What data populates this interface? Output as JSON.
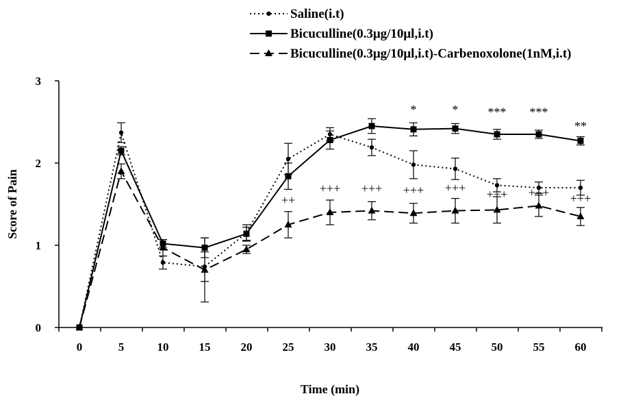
{
  "chart_data": {
    "type": "line",
    "title": "",
    "xlabel": "Time (min)",
    "ylabel": "Score of Pain",
    "x": [
      0,
      5,
      10,
      15,
      20,
      25,
      30,
      35,
      40,
      45,
      50,
      55,
      60
    ],
    "xlim": [
      0,
      60
    ],
    "ylim": [
      0,
      3
    ],
    "y_ticks": [
      0,
      1,
      2,
      3
    ],
    "grid": false,
    "legend_position": "top-center",
    "series": [
      {
        "name": "Saline(i.t)",
        "style": "dotted",
        "marker": "circle",
        "color": "#000000",
        "values": [
          0,
          2.37,
          0.79,
          0.74,
          1.15,
          2.05,
          2.35,
          2.19,
          1.98,
          1.93,
          1.73,
          1.7,
          1.7
        ],
        "errors": [
          0,
          0.12,
          0.08,
          0.18,
          0.1,
          0.19,
          0.08,
          0.1,
          0.17,
          0.13,
          0.08,
          0.07,
          0.09
        ]
      },
      {
        "name": "Bicuculline(0.3μg/10μl,i.t)",
        "style": "solid",
        "marker": "square",
        "color": "#000000",
        "values": [
          0,
          2.15,
          1.02,
          0.97,
          1.14,
          1.84,
          2.28,
          2.45,
          2.41,
          2.42,
          2.35,
          2.35,
          2.27
        ],
        "errors": [
          0,
          0.05,
          0.05,
          0.12,
          0.08,
          0.16,
          0.11,
          0.09,
          0.08,
          0.06,
          0.06,
          0.05,
          0.05
        ]
      },
      {
        "name": "Bicuculline(0.3μg/10μl,i.t)-Carbenoxolone(1nM,i.t)",
        "style": "dashed",
        "marker": "triangle",
        "color": "#000000",
        "values": [
          0,
          1.9,
          0.97,
          0.7,
          0.95,
          1.25,
          1.4,
          1.42,
          1.39,
          1.42,
          1.43,
          1.48,
          1.35
        ],
        "errors": [
          0,
          0.09,
          0.1,
          0.39,
          0.05,
          0.16,
          0.15,
          0.11,
          0.12,
          0.15,
          0.16,
          0.13,
          0.11
        ]
      }
    ],
    "annotations": [
      {
        "x": 40,
        "text": "*",
        "y": 2.6
      },
      {
        "x": 45,
        "text": "*",
        "y": 2.6
      },
      {
        "x": 50,
        "text": "***",
        "y": 2.57
      },
      {
        "x": 55,
        "text": "***",
        "y": 2.57
      },
      {
        "x": 60,
        "text": "**",
        "y": 2.4
      },
      {
        "x": 25,
        "text": "++",
        "y": 1.5
      },
      {
        "x": 30,
        "text": "+++",
        "y": 1.64
      },
      {
        "x": 35,
        "text": "+++",
        "y": 1.64
      },
      {
        "x": 40,
        "text": "+++",
        "y": 1.62
      },
      {
        "x": 45,
        "text": "+++",
        "y": 1.65
      },
      {
        "x": 50,
        "text": "+++",
        "y": 1.57
      },
      {
        "x": 55,
        "text": "+++",
        "y": 1.59
      },
      {
        "x": 60,
        "text": "+++",
        "y": 1.52
      }
    ]
  }
}
